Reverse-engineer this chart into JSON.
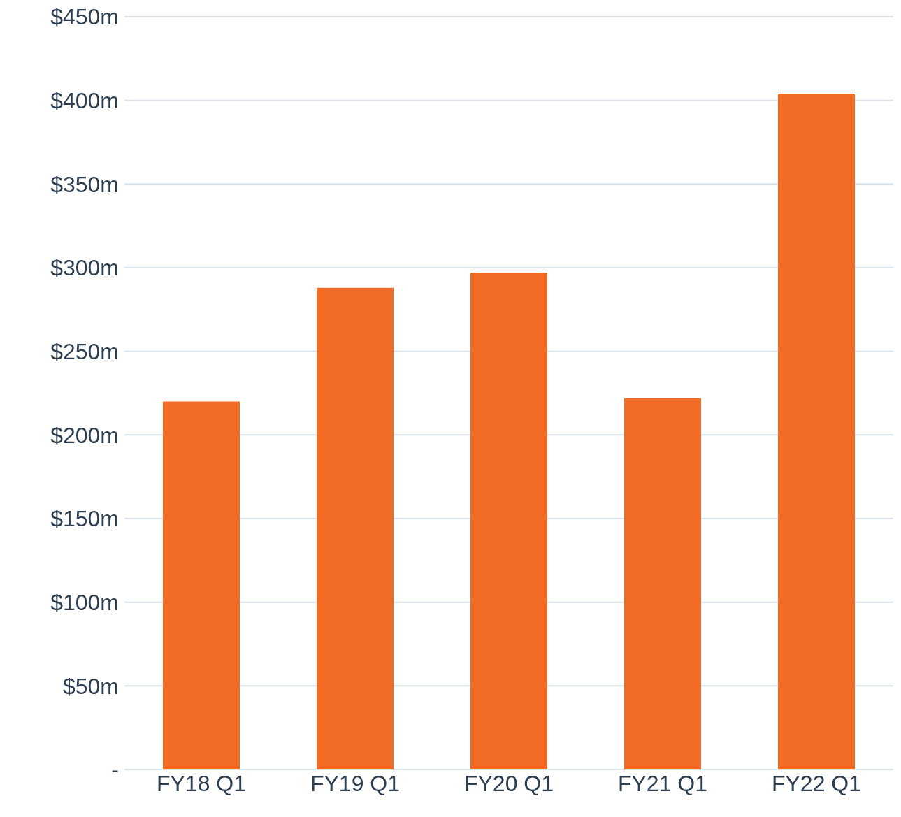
{
  "chart_data": {
    "type": "bar",
    "categories": [
      "FY18 Q1",
      "FY19 Q1",
      "FY20 Q1",
      "FY21 Q1",
      "FY22 Q1"
    ],
    "values": [
      220,
      288,
      297,
      222,
      404
    ],
    "color": "#f26b25",
    "ylim": [
      0,
      450
    ],
    "yticks": [
      {
        "value": 0,
        "label": "-"
      },
      {
        "value": 50,
        "label": "$50m"
      },
      {
        "value": 100,
        "label": "$100m"
      },
      {
        "value": 150,
        "label": "$150m"
      },
      {
        "value": 200,
        "label": "$200m"
      },
      {
        "value": 250,
        "label": "$250m"
      },
      {
        "value": 300,
        "label": "$300m"
      },
      {
        "value": 350,
        "label": "$350m"
      },
      {
        "value": 400,
        "label": "$400m"
      },
      {
        "value": 450,
        "label": "$450m"
      }
    ],
    "grid": "y"
  }
}
